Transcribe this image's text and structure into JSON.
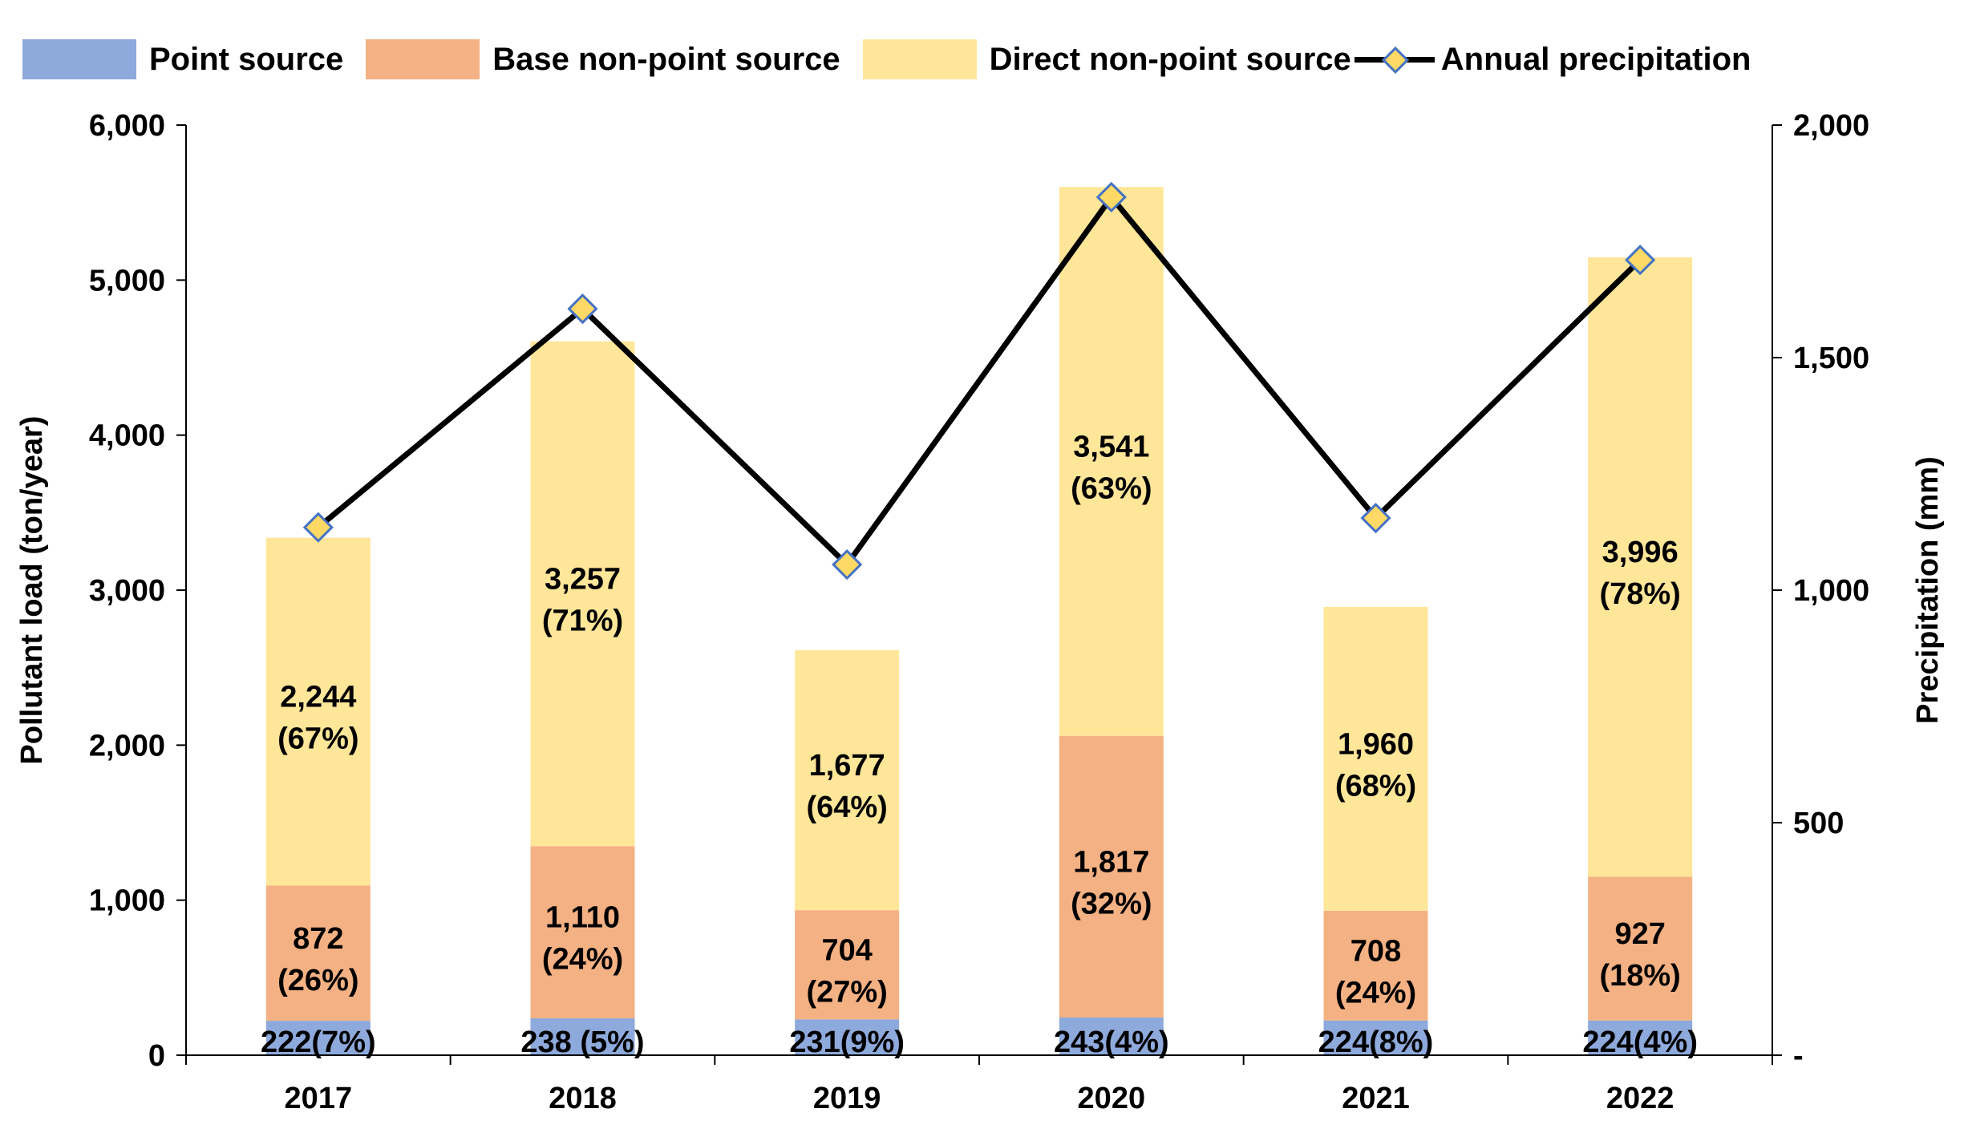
{
  "legend": {
    "point": "Point source",
    "base": "Base non-point source",
    "direct": "Direct non-point source",
    "precip": "Annual precipitation"
  },
  "colors": {
    "point": "#8EA9DB",
    "base": "#F4B183",
    "direct": "#FFE699",
    "line": "#000000",
    "marker_fill": "#FFD966",
    "marker_stroke": "#4472C4"
  },
  "chart_data": {
    "type": "bar",
    "stacked": true,
    "categories": [
      "2017",
      "2018",
      "2019",
      "2020",
      "2021",
      "2022"
    ],
    "ylabel": "Pollutant load (ton/year)",
    "y2label": "Precipitation (mm)",
    "ylim": [
      0,
      6000
    ],
    "y2lim": [
      0,
      2000
    ],
    "yticks": [
      "0",
      "1,000",
      "2,000",
      "3,000",
      "4,000",
      "5,000",
      "6,000"
    ],
    "y2ticks": [
      "-",
      "500",
      "1,000",
      "1,500",
      "2,000"
    ],
    "series": [
      {
        "name": "Point source",
        "key": "point",
        "values": [
          222,
          238,
          231,
          243,
          224,
          224
        ],
        "labels": [
          "222(7%)",
          "238 (5%)",
          "231(9%)",
          "243(4%)",
          "224(8%)",
          "224(4%)"
        ]
      },
      {
        "name": "Base non-point source",
        "key": "base",
        "values": [
          872,
          1110,
          704,
          1817,
          708,
          927
        ],
        "labels": [
          [
            "872",
            "(26%)"
          ],
          [
            "1,110",
            "(24%)"
          ],
          [
            "704",
            "(27%)"
          ],
          [
            "1,817",
            "(32%)"
          ],
          [
            "708",
            "(24%)"
          ],
          [
            "927",
            "(18%)"
          ]
        ]
      },
      {
        "name": "Direct non-point source",
        "key": "direct",
        "values": [
          2244,
          3257,
          1677,
          3541,
          1960,
          3996
        ],
        "labels": [
          [
            "2,244",
            "(67%)"
          ],
          [
            "3,257",
            "(71%)"
          ],
          [
            "1,677",
            "(64%)"
          ],
          [
            "3,541",
            "(63%)"
          ],
          [
            "1,960",
            "(68%)"
          ],
          [
            "3,996",
            "(78%)"
          ]
        ]
      }
    ],
    "line": {
      "name": "Annual precipitation",
      "axis": "secondary",
      "values": [
        1135,
        1605,
        1055,
        1845,
        1155,
        1710
      ]
    }
  }
}
